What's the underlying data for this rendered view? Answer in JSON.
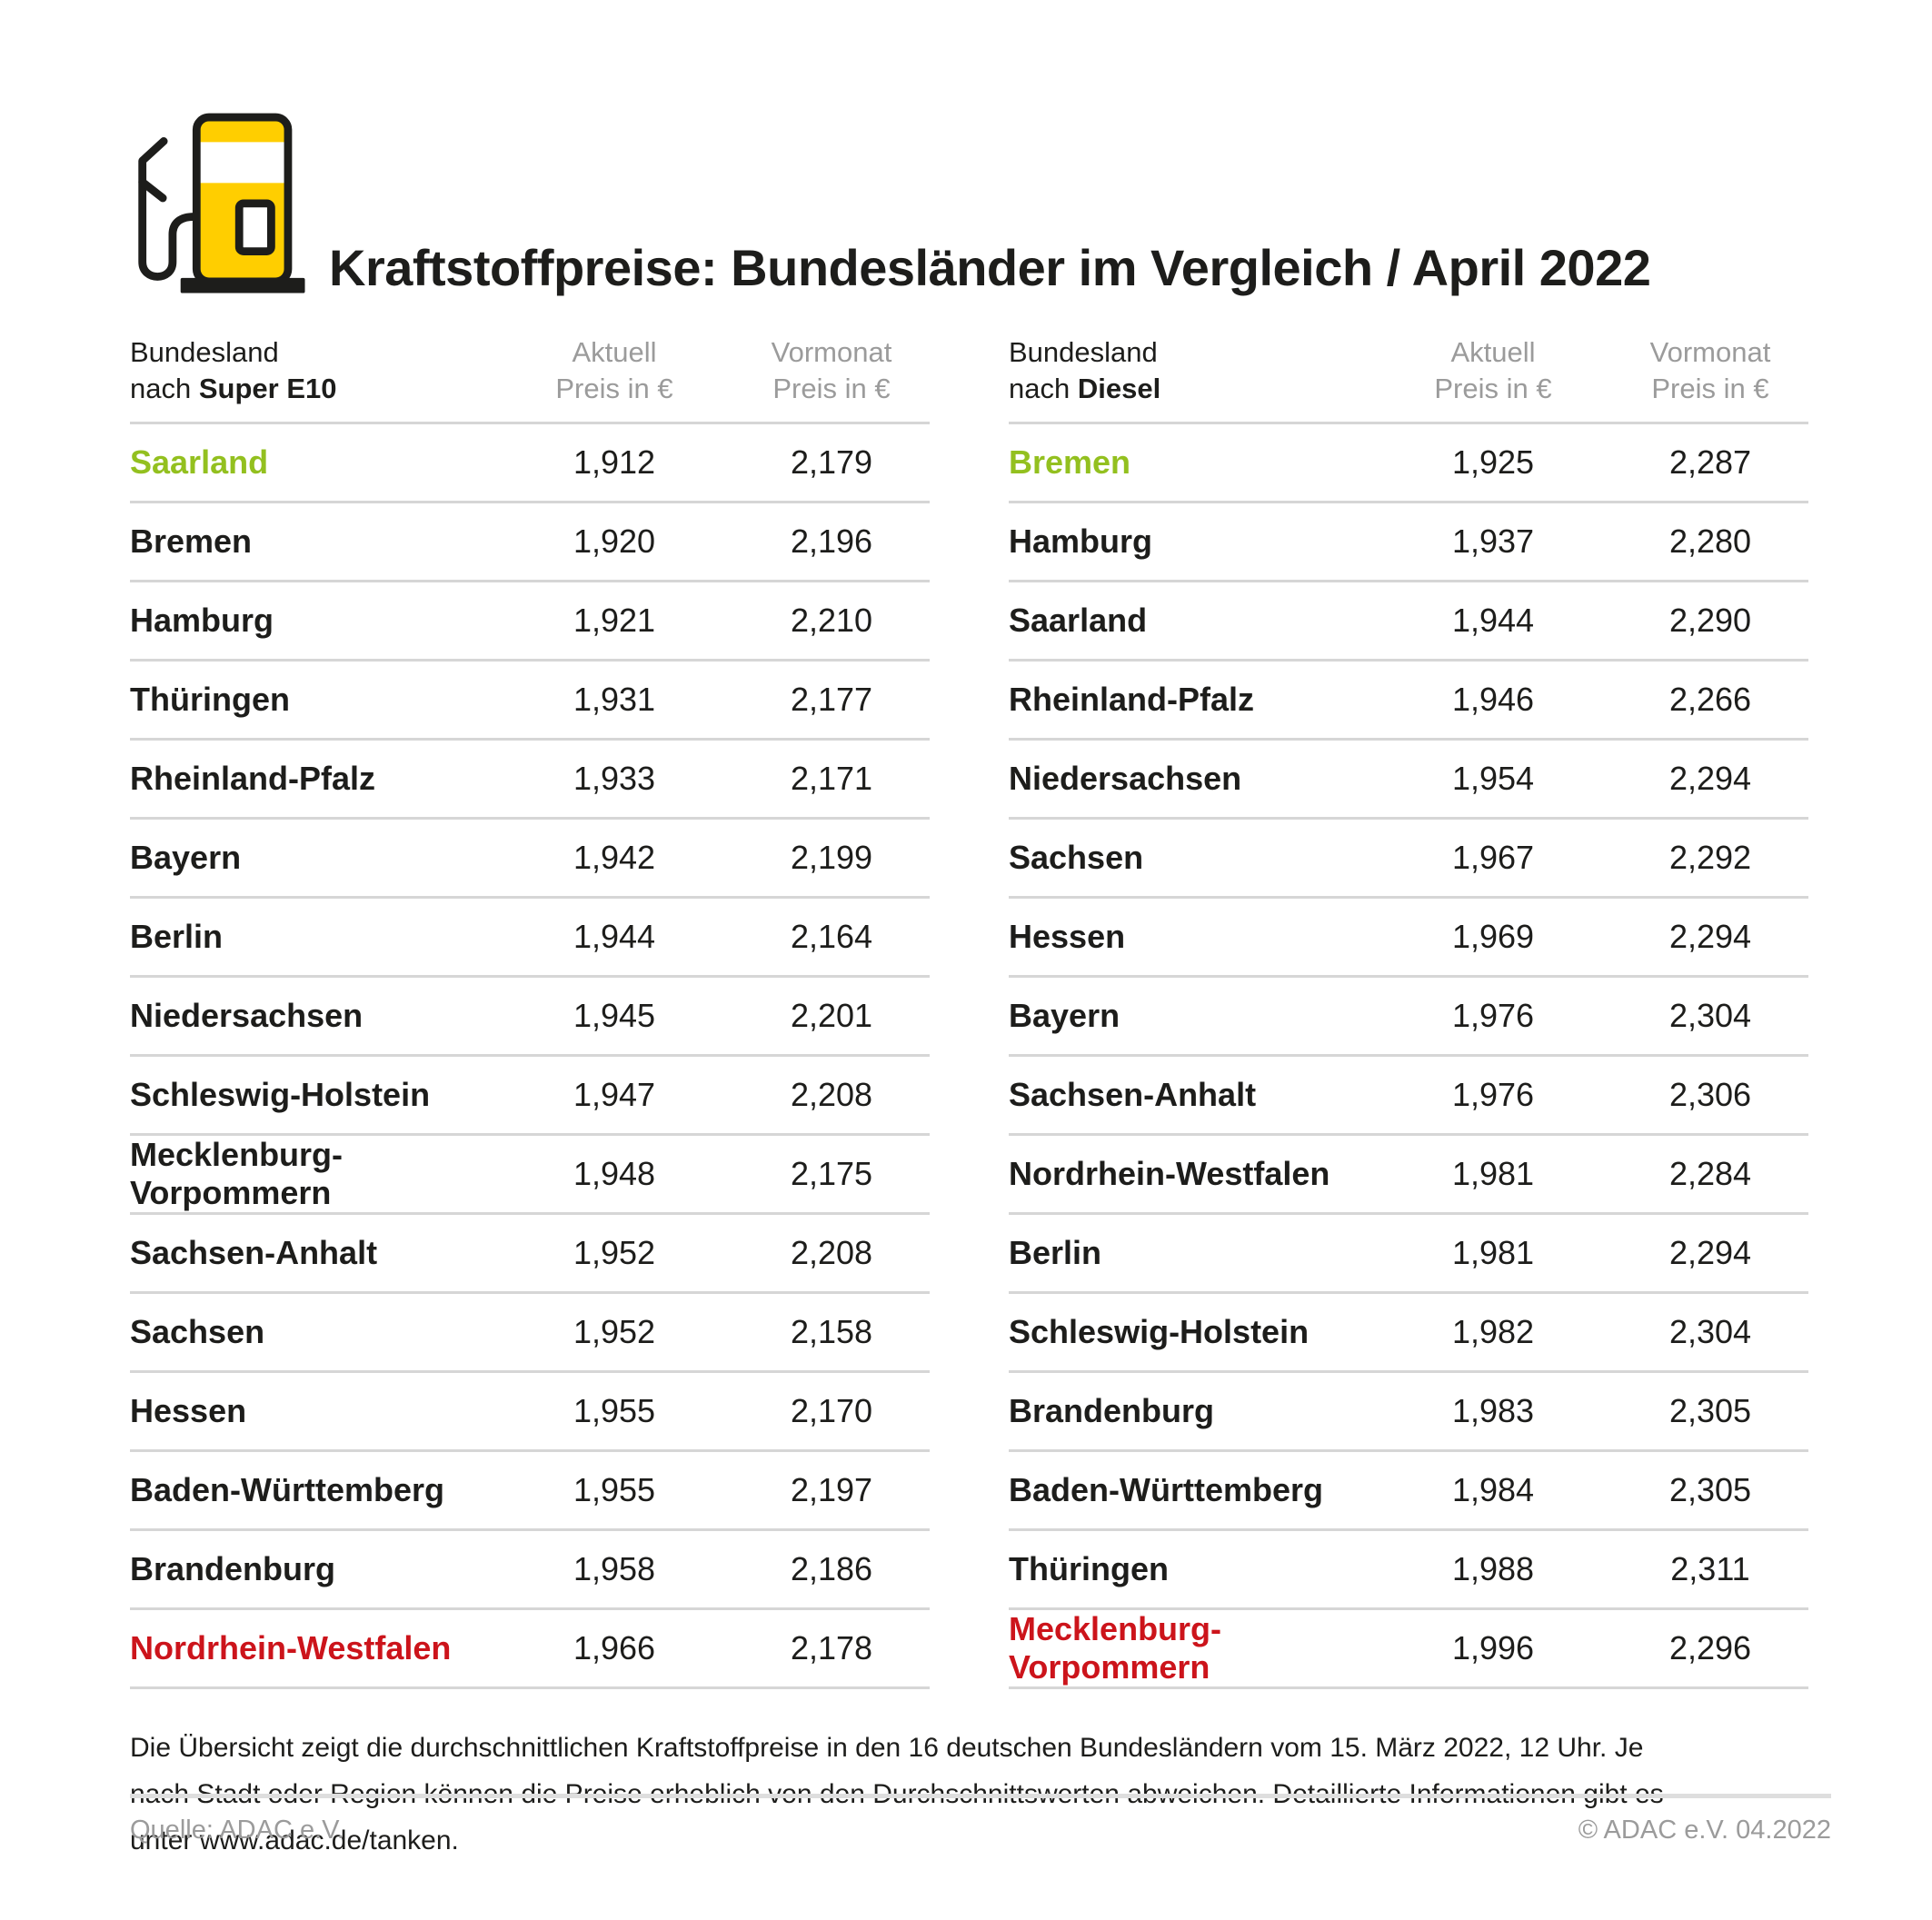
{
  "header": {
    "title": "Kraftstoffpreise: Bundesländer im Vergleich / April 2022",
    "icon": "fuel-pump-icon"
  },
  "columns": {
    "aktuell": "Aktuell",
    "vormonat": "Vormonat",
    "price_unit": "Preis in €"
  },
  "tables": [
    {
      "id": "super-e10",
      "col_label_top": "Bundesland",
      "col_label_prefix": "nach",
      "fuel": "Super E10",
      "rows": [
        {
          "state": "Saarland",
          "aktuell": "1,912",
          "vormonat": "2,179",
          "highlight": "green"
        },
        {
          "state": "Bremen",
          "aktuell": "1,920",
          "vormonat": "2,196"
        },
        {
          "state": "Hamburg",
          "aktuell": "1,921",
          "vormonat": "2,210"
        },
        {
          "state": "Thüringen",
          "aktuell": "1,931",
          "vormonat": "2,177"
        },
        {
          "state": "Rheinland-Pfalz",
          "aktuell": "1,933",
          "vormonat": "2,171"
        },
        {
          "state": "Bayern",
          "aktuell": "1,942",
          "vormonat": "2,199"
        },
        {
          "state": "Berlin",
          "aktuell": "1,944",
          "vormonat": "2,164"
        },
        {
          "state": "Niedersachsen",
          "aktuell": "1,945",
          "vormonat": "2,201"
        },
        {
          "state": "Schleswig-Holstein",
          "aktuell": "1,947",
          "vormonat": "2,208"
        },
        {
          "state": "Mecklenburg-Vorpommern",
          "aktuell": "1,948",
          "vormonat": "2,175"
        },
        {
          "state": "Sachsen-Anhalt",
          "aktuell": "1,952",
          "vormonat": "2,208"
        },
        {
          "state": "Sachsen",
          "aktuell": "1,952",
          "vormonat": "2,158"
        },
        {
          "state": "Hessen",
          "aktuell": "1,955",
          "vormonat": "2,170"
        },
        {
          "state": "Baden-Württemberg",
          "aktuell": "1,955",
          "vormonat": "2,197"
        },
        {
          "state": "Brandenburg",
          "aktuell": "1,958",
          "vormonat": "2,186"
        },
        {
          "state": "Nordrhein-Westfalen",
          "aktuell": "1,966",
          "vormonat": "2,178",
          "highlight": "red"
        }
      ]
    },
    {
      "id": "diesel",
      "col_label_top": "Bundesland",
      "col_label_prefix": "nach",
      "fuel": "Diesel",
      "rows": [
        {
          "state": "Bremen",
          "aktuell": "1,925",
          "vormonat": "2,287",
          "highlight": "green"
        },
        {
          "state": "Hamburg",
          "aktuell": "1,937",
          "vormonat": "2,280"
        },
        {
          "state": "Saarland",
          "aktuell": "1,944",
          "vormonat": "2,290"
        },
        {
          "state": "Rheinland-Pfalz",
          "aktuell": "1,946",
          "vormonat": "2,266"
        },
        {
          "state": "Niedersachsen",
          "aktuell": "1,954",
          "vormonat": "2,294"
        },
        {
          "state": "Sachsen",
          "aktuell": "1,967",
          "vormonat": "2,292"
        },
        {
          "state": "Hessen",
          "aktuell": "1,969",
          "vormonat": "2,294"
        },
        {
          "state": "Bayern",
          "aktuell": "1,976",
          "vormonat": "2,304"
        },
        {
          "state": "Sachsen-Anhalt",
          "aktuell": "1,976",
          "vormonat": "2,306"
        },
        {
          "state": "Nordrhein-Westfalen",
          "aktuell": "1,981",
          "vormonat": "2,284"
        },
        {
          "state": "Berlin",
          "aktuell": "1,981",
          "vormonat": "2,294"
        },
        {
          "state": "Schleswig-Holstein",
          "aktuell": "1,982",
          "vormonat": "2,304"
        },
        {
          "state": "Brandenburg",
          "aktuell": "1,983",
          "vormonat": "2,305"
        },
        {
          "state": "Baden-Württemberg",
          "aktuell": "1,984",
          "vormonat": "2,305"
        },
        {
          "state": "Thüringen",
          "aktuell": "1,988",
          "vormonat": "2,311"
        },
        {
          "state": "Mecklenburg-Vorpommern",
          "aktuell": "1,996",
          "vormonat": "2,296",
          "highlight": "red"
        }
      ]
    }
  ],
  "footnote": {
    "text": "Die Übersicht zeigt die durchschnittlichen Kraftstoffpreise in den 16 deutschen Bundesländern vom 15. März 2022, 12 Uhr. Je nach Stadt oder Region können die Preise erheblich von den Durchschnittswerten abweichen. Detaillierte Informationen gibt es unter www.adac.de/tanken."
  },
  "footer": {
    "source": "Quelle: ADAC e.V.",
    "copyright": "© ADAC e.V. 04.2022"
  },
  "colors": {
    "green": "#93C01F",
    "red": "#CC141B",
    "pump_yellow": "#FFCE00",
    "text_dark": "#1D1D1B",
    "text_gray": "#9B9B9B",
    "divider": "#D6D6D6"
  },
  "chart_data": [
    {
      "type": "table",
      "title": "Bundesland nach Super E10",
      "columns": [
        "Bundesland",
        "Aktuell Preis in €",
        "Vormonat Preis in €"
      ],
      "rows": [
        [
          "Saarland",
          1.912,
          2.179
        ],
        [
          "Bremen",
          1.92,
          2.196
        ],
        [
          "Hamburg",
          1.921,
          2.21
        ],
        [
          "Thüringen",
          1.931,
          2.177
        ],
        [
          "Rheinland-Pfalz",
          1.933,
          2.171
        ],
        [
          "Bayern",
          1.942,
          2.199
        ],
        [
          "Berlin",
          1.944,
          2.164
        ],
        [
          "Niedersachsen",
          1.945,
          2.201
        ],
        [
          "Schleswig-Holstein",
          1.947,
          2.208
        ],
        [
          "Mecklenburg-Vorpommern",
          1.948,
          2.175
        ],
        [
          "Sachsen-Anhalt",
          1.952,
          2.208
        ],
        [
          "Sachsen",
          1.952,
          2.158
        ],
        [
          "Hessen",
          1.955,
          2.17
        ],
        [
          "Baden-Württemberg",
          1.955,
          2.197
        ],
        [
          "Brandenburg",
          1.958,
          2.186
        ],
        [
          "Nordrhein-Westfalen",
          1.966,
          2.178
        ]
      ],
      "annotations": {
        "lowest_green": "Saarland",
        "highest_red": "Nordrhein-Westfalen"
      }
    },
    {
      "type": "table",
      "title": "Bundesland nach Diesel",
      "columns": [
        "Bundesland",
        "Aktuell Preis in €",
        "Vormonat Preis in €"
      ],
      "rows": [
        [
          "Bremen",
          1.925,
          2.287
        ],
        [
          "Hamburg",
          1.937,
          2.28
        ],
        [
          "Saarland",
          1.944,
          2.29
        ],
        [
          "Rheinland-Pfalz",
          1.946,
          2.266
        ],
        [
          "Niedersachsen",
          1.954,
          2.294
        ],
        [
          "Sachsen",
          1.967,
          2.292
        ],
        [
          "Hessen",
          1.969,
          2.294
        ],
        [
          "Bayern",
          1.976,
          2.304
        ],
        [
          "Sachsen-Anhalt",
          1.976,
          2.306
        ],
        [
          "Nordrhein-Westfalen",
          1.981,
          2.284
        ],
        [
          "Berlin",
          1.981,
          2.294
        ],
        [
          "Schleswig-Holstein",
          1.982,
          2.304
        ],
        [
          "Brandenburg",
          1.983,
          2.305
        ],
        [
          "Baden-Württemberg",
          1.984,
          2.305
        ],
        [
          "Thüringen",
          1.988,
          2.311
        ],
        [
          "Mecklenburg-Vorpommern",
          1.996,
          2.296
        ]
      ],
      "annotations": {
        "lowest_green": "Bremen",
        "highest_red": "Mecklenburg-Vorpommern"
      }
    }
  ]
}
